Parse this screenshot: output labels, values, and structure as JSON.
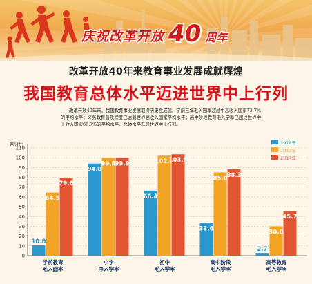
{
  "banner": {
    "celebrate_prefix": "庆祝改革开放",
    "celebrate_number": "40",
    "celebrate_suffix": "周年"
  },
  "subtitle": "改革开放40年来教育事业发展成就辉煌",
  "headline": "我国教育总体水平迈进世界中上行列",
  "intro": "改革开放40年来，我国教育事业发展取得历史性成就。学前三年毛入园率超过中高收入国家73.7%的平均水平；义务教育普及程度已达到世界高收入国家平均水平；高中阶段教育毛入学率已超过世界中上收入国家86.7%的平均水平，总体水平跃居世界中上行列。",
  "colors": {
    "background": "#fdf6e8",
    "series_1978": "#2a97cf",
    "series_2012": "#f2a427",
    "series_2017": "#e25533",
    "headline": "#d8121b"
  },
  "chart_data": {
    "type": "bar",
    "ylabel": "百分比",
    "ylim": [
      0,
      110
    ],
    "yticks": [
      0,
      10,
      20,
      30,
      40,
      50,
      60,
      70,
      80,
      90,
      100,
      110
    ],
    "grid": true,
    "legend_position": "top-right",
    "categories": [
      "学前教育\n毛入园率",
      "小学\n净入学率",
      "初中\n毛入学率",
      "高中阶段\n毛入学率",
      "高等教育\n毛入学率"
    ],
    "series": [
      {
        "name": "1978年",
        "color": "#2a97cf",
        "values": [
          10.6,
          94.0,
          66.4,
          33.6,
          2.7
        ]
      },
      {
        "name": "2012年",
        "color": "#f2a427",
        "values": [
          64.5,
          99.8,
          102.1,
          85.0,
          30.0
        ]
      },
      {
        "name": "2017年",
        "color": "#e25533",
        "values": [
          79.6,
          99.9,
          103.5,
          88.3,
          45.7
        ]
      }
    ],
    "value_labels": [
      [
        "10.6",
        "94.0",
        "66.4",
        "33.6",
        "2.7"
      ],
      [
        "64.5",
        "99.8",
        "102.1",
        "85.0",
        "30.0"
      ],
      [
        "79.6",
        "99.9",
        "103.5",
        "88.3",
        "45.7"
      ]
    ]
  }
}
